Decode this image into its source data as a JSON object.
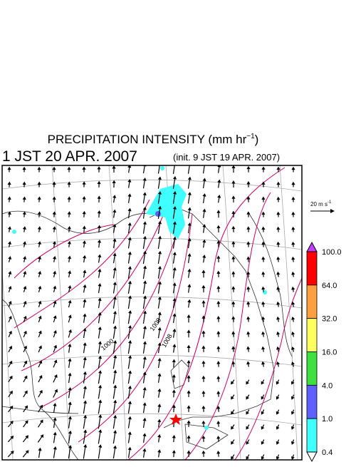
{
  "title": {
    "text": "PRECIPITATION INTENSITY (mm hr",
    "sup": "−1",
    "close": ")"
  },
  "valid_time": "1 JST 20 APR. 2007",
  "init_time": "(init. 9 JST 19 APR. 2007)",
  "scale_arrow": {
    "label": "20 m s",
    "sup": "-1"
  },
  "colorbar": {
    "labels": [
      "100.0",
      "64.0",
      "32.0",
      "16.0",
      "4.0",
      "1.0",
      "0.4"
    ],
    "colors": [
      "#ff0000",
      "#ffa040",
      "#ffff60",
      "#40e040",
      "#6060ff",
      "#40ffff"
    ],
    "over_color": "#c040ff",
    "under_color": "#ffffff"
  },
  "contour_labels": [
    "1000",
    "1008",
    "1008"
  ]
}
